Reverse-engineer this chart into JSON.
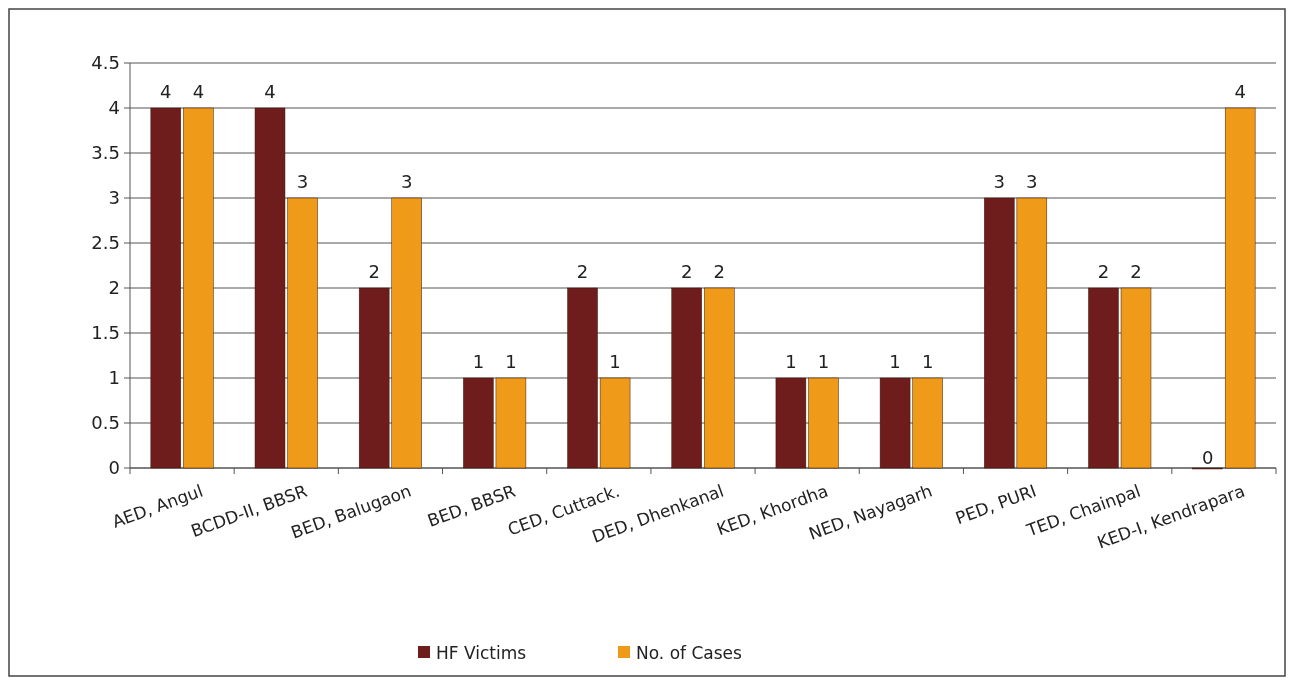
{
  "chart_data": {
    "type": "bar",
    "categories": [
      "AED, Angul",
      "BCDD-II, BBSR",
      "BED, Balugaon",
      "BED, BBSR",
      "CED, Cuttack.",
      "DED, Dhenkanal",
      "KED, Khordha",
      "NED, Nayagarh",
      "PED, PURI",
      "TED, Chainpal",
      "KED-I, Kendrapara"
    ],
    "series": [
      {
        "name": "HF Victims",
        "color": "#6e1c1c",
        "values": [
          4,
          4,
          2,
          1,
          2,
          2,
          1,
          1,
          3,
          2,
          0
        ]
      },
      {
        "name": "No. of Cases",
        "color": "#f09a1a",
        "values": [
          4,
          3,
          3,
          1,
          1,
          2,
          1,
          1,
          3,
          2,
          4
        ]
      }
    ],
    "ylim": [
      0,
      4.5
    ],
    "yticks": [
      0,
      0.5,
      1,
      1.5,
      2,
      2.5,
      3,
      3.5,
      4,
      4.5
    ],
    "grid": "y",
    "data_labels": true,
    "legend": "bottom"
  }
}
